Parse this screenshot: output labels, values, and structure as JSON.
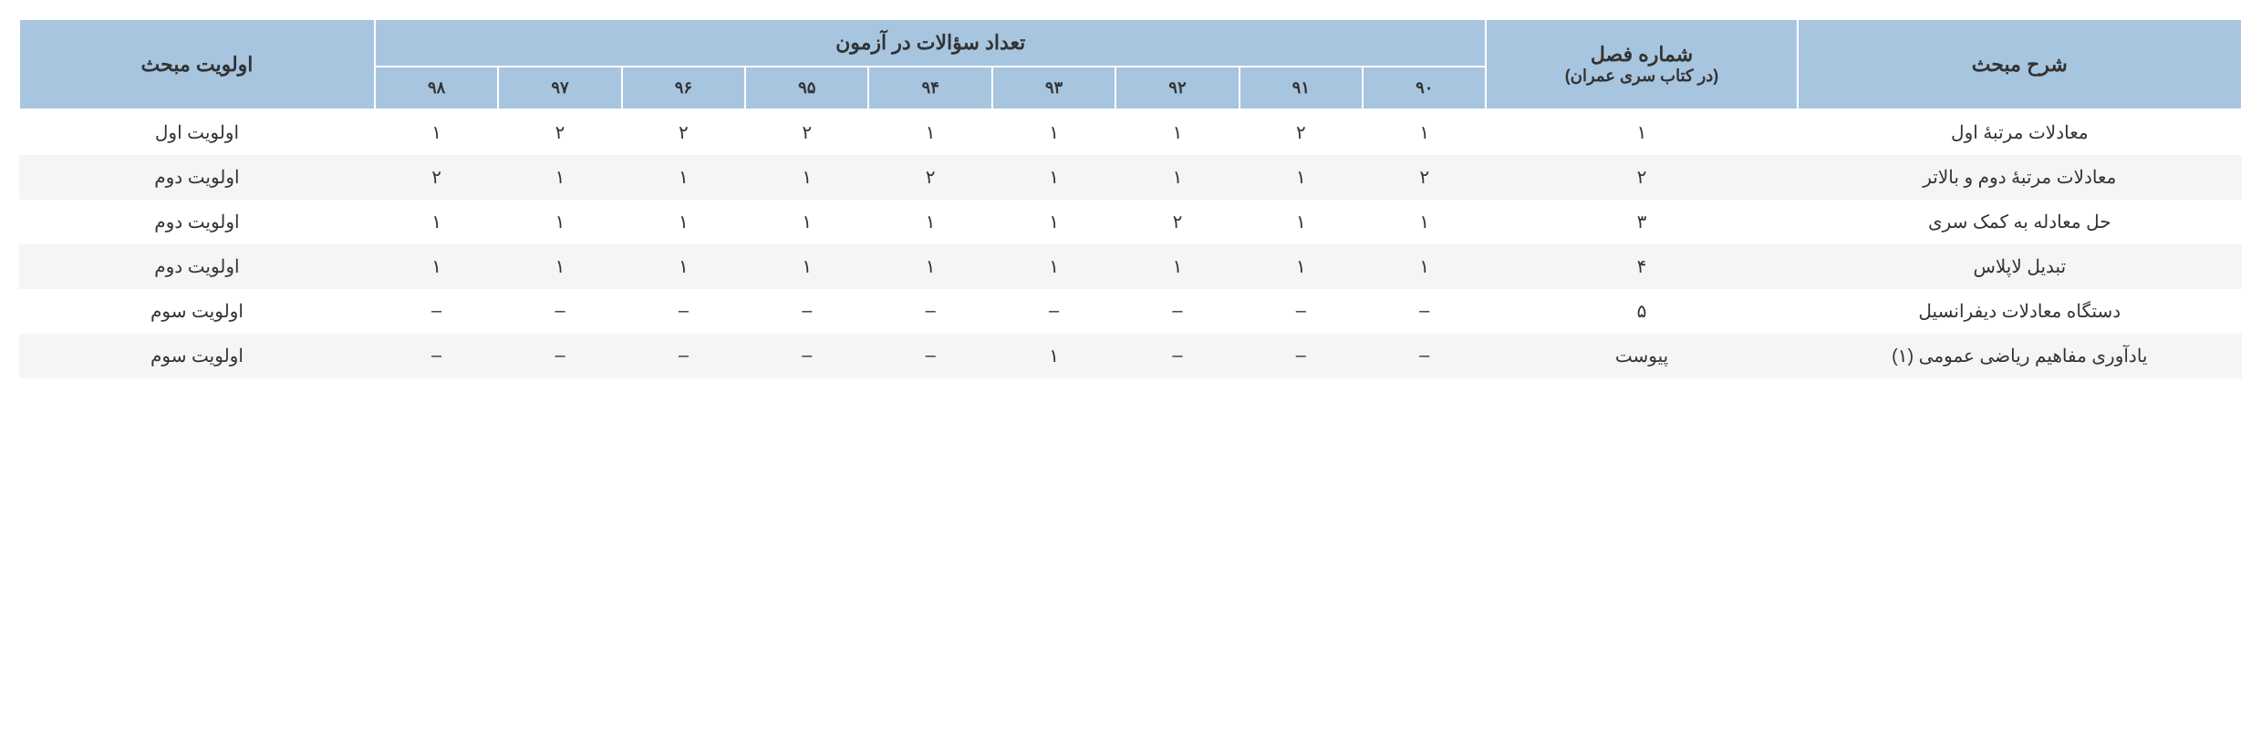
{
  "table": {
    "header": {
      "topic_description": "شرح مبحث",
      "chapter_number_line1": "شماره فصل",
      "chapter_number_line2": "(در کتاب سری عمران)",
      "questions_count": "تعداد سؤالات در آزمون",
      "topic_priority": "اولویت مبحث",
      "years": [
        "۹۰",
        "۹۱",
        "۹۲",
        "۹۳",
        "۹۴",
        "۹۵",
        "۹۶",
        "۹۷",
        "۹۸"
      ]
    },
    "rows": [
      {
        "topic": "معادلات مرتبهٔ اول",
        "chapter": "۱",
        "y90": "۱",
        "y91": "۲",
        "y92": "۱",
        "y93": "۱",
        "y94": "۱",
        "y95": "۲",
        "y96": "۲",
        "y97": "۲",
        "y98": "۱",
        "priority": "اولویت اول"
      },
      {
        "topic": "معادلات مرتبهٔ دوم و بالاتر",
        "chapter": "۲",
        "y90": "۲",
        "y91": "۱",
        "y92": "۱",
        "y93": "۱",
        "y94": "۲",
        "y95": "۱",
        "y96": "۱",
        "y97": "۱",
        "y98": "۲",
        "priority": "اولویت دوم"
      },
      {
        "topic": "حل معادله به کمک سری",
        "chapter": "۳",
        "y90": "۱",
        "y91": "۱",
        "y92": "۲",
        "y93": "۱",
        "y94": "۱",
        "y95": "۱",
        "y96": "۱",
        "y97": "۱",
        "y98": "۱",
        "priority": "اولویت دوم"
      },
      {
        "topic": "تبدیل لاپلاس",
        "chapter": "۴",
        "y90": "۱",
        "y91": "۱",
        "y92": "۱",
        "y93": "۱",
        "y94": "۱",
        "y95": "۱",
        "y96": "۱",
        "y97": "۱",
        "y98": "۱",
        "priority": "اولویت دوم"
      },
      {
        "topic": "دستگاه معادلات دیفرانسیل",
        "chapter": "۵",
        "y90": "–",
        "y91": "–",
        "y92": "–",
        "y93": "–",
        "y94": "–",
        "y95": "–",
        "y96": "–",
        "y97": "–",
        "y98": "–",
        "priority": "اولویت سوم"
      },
      {
        "topic": "یادآوری مفاهیم ریاضی عمومی (۱)",
        "chapter": "پیوست",
        "y90": "–",
        "y91": "–",
        "y92": "–",
        "y93": "۱",
        "y94": "–",
        "y95": "–",
        "y96": "–",
        "y97": "–",
        "y98": "–",
        "priority": "اولویت سوم"
      }
    ],
    "styling": {
      "header_bg_color": "#a8c5e0",
      "row_odd_bg": "#ffffff",
      "row_even_bg": "#f5f5f5",
      "border_color": "#ffffff",
      "text_color": "#333333",
      "header_font_size": 22,
      "sub_header_font_size": 18,
      "cell_font_size": 20
    }
  }
}
